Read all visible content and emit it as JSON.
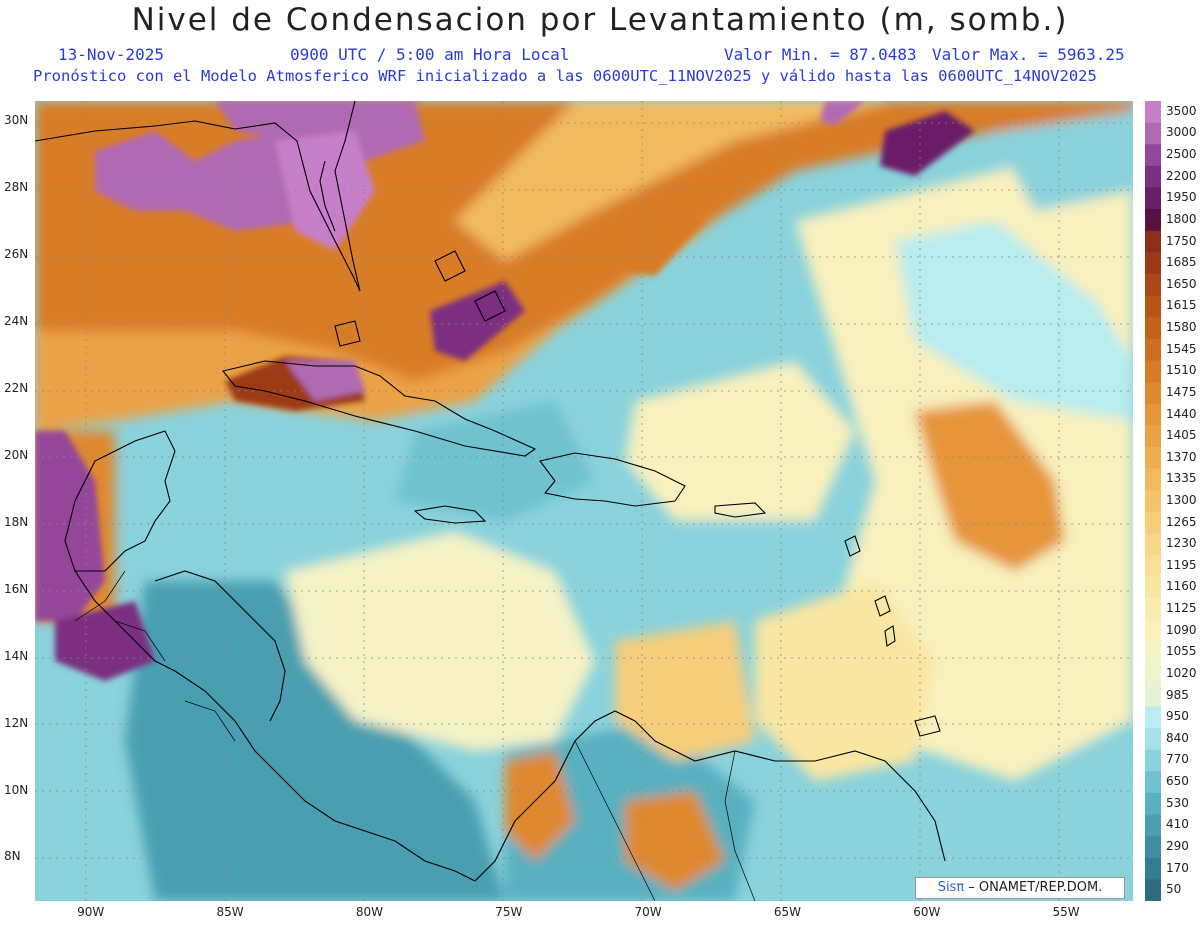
{
  "header": {
    "title": "Nivel de Condensacion por Levantamiento (m, somb.)",
    "date": "13-Nov-2025",
    "time": "0900 UTC / 5:00 am Hora Local",
    "min_label": "Valor Min. = 87.0483",
    "max_label": "Valor Max. = 5963.25",
    "forecast_line": "Pronóstico con el Modelo Atmosferico WRF inicializado a las 0600UTC_11NOV2025 y válido hasta las  0600UTC_14NOV2025"
  },
  "map": {
    "lat_labels": [
      "30N",
      "28N",
      "26N",
      "24N",
      "22N",
      "20N",
      "18N",
      "16N",
      "14N",
      "12N",
      "10N",
      "8N"
    ],
    "lon_labels": [
      "90W",
      "85W",
      "80W",
      "75W",
      "70W",
      "65W",
      "60W",
      "55W"
    ],
    "extent": {
      "lon_min": -92,
      "lon_max": -52.6,
      "lat_min": 6.7,
      "lat_max": 30.6
    },
    "gridlines": "dotted"
  },
  "colorbar": {
    "labels": [
      "3500",
      "3000",
      "2500",
      "2200",
      "1950",
      "1800",
      "1750",
      "1685",
      "1650",
      "1615",
      "1580",
      "1545",
      "1510",
      "1475",
      "1440",
      "1405",
      "1370",
      "1335",
      "1300",
      "1265",
      "1230",
      "1195",
      "1160",
      "1125",
      "1090",
      "1055",
      "1020",
      "985",
      "950",
      "840",
      "770",
      "650",
      "530",
      "410",
      "290",
      "170",
      "50"
    ],
    "colors": [
      "#c77fc9",
      "#b06ab3",
      "#94479a",
      "#7b2f80",
      "#6a1d68",
      "#5a1040",
      "#8b2d1a",
      "#9c3a18",
      "#ac4716",
      "#ba5417",
      "#c6611a",
      "#d06e1f",
      "#d97b26",
      "#e0882f",
      "#e6953a",
      "#eba246",
      "#efae52",
      "#f2ba5f",
      "#f4c46d",
      "#f6ce7b",
      "#f7d788",
      "#f8df95",
      "#f9e6a3",
      "#f9ecb0",
      "#f8f0bd",
      "#f4f2c6",
      "#eef2cc",
      "#e6f2d2",
      "#b8ecee",
      "#a6e1e8",
      "#8ad2dc",
      "#6fc2cf",
      "#59b0c0",
      "#4a9fb0",
      "#3f8ea0",
      "#347c8f",
      "#2e6d80"
    ]
  },
  "credit": {
    "sis": "Sisπ",
    "rest": " – ONAMET/REP.DOM."
  }
}
